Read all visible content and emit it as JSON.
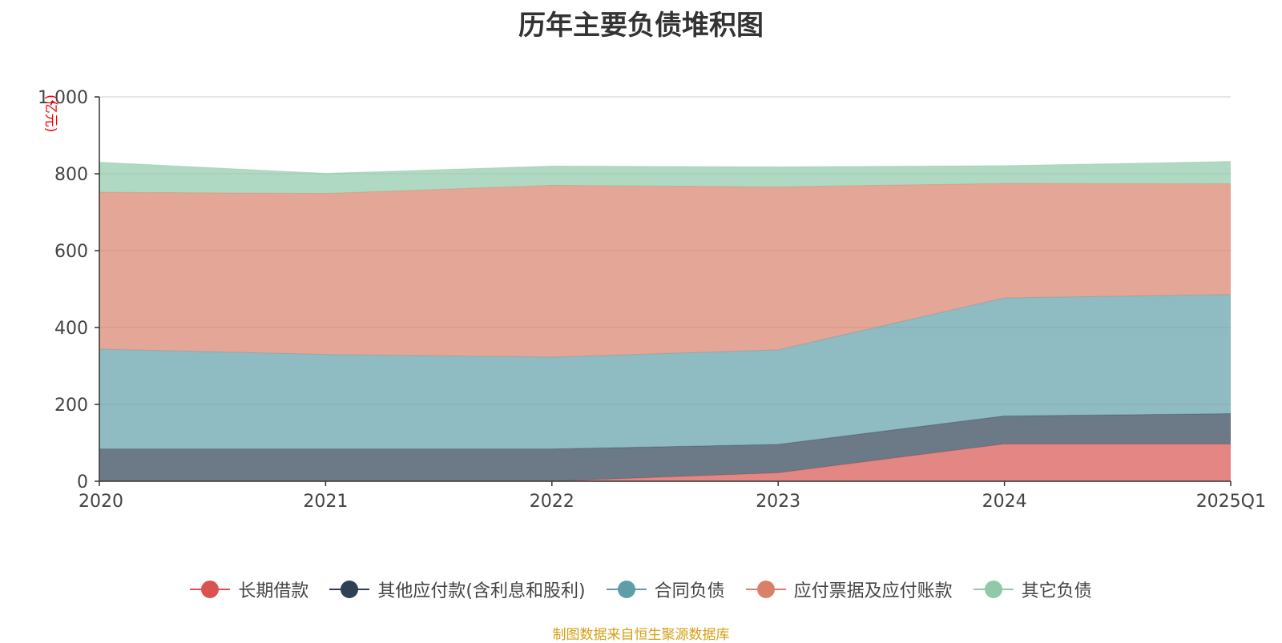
{
  "chart_data": {
    "type": "area",
    "stacked": true,
    "title": "历年主要负债堆积图",
    "unit_label": "(亿元)",
    "categories": [
      "2020",
      "2021",
      "2022",
      "2023",
      "2024",
      "2025Q1"
    ],
    "ylim": [
      0,
      1000
    ],
    "yticks": [
      "0",
      "200",
      "400",
      "600",
      "800",
      "1,000"
    ],
    "grid": true,
    "legend_position": "bottom",
    "series": [
      {
        "name": "长期借款",
        "color": "#d9534f",
        "values": [
          0,
          0,
          0,
          22,
          97,
          97
        ]
      },
      {
        "name": "其他应付款(含利息和股利)",
        "color": "#2e4053",
        "values": [
          84,
          84,
          84,
          74,
          73,
          79
        ]
      },
      {
        "name": "合同负债",
        "color": "#5f9ea8",
        "values": [
          260,
          246,
          239,
          246,
          307,
          310
        ]
      },
      {
        "name": "应付票据及应付账款",
        "color": "#d9806a",
        "values": [
          408,
          419,
          447,
          424,
          298,
          288
        ]
      },
      {
        "name": "其它负债",
        "color": "#8fc9a9",
        "values": [
          78,
          52,
          50,
          52,
          46,
          58
        ]
      }
    ]
  },
  "source_note": "制图数据来自恒生聚源数据库"
}
